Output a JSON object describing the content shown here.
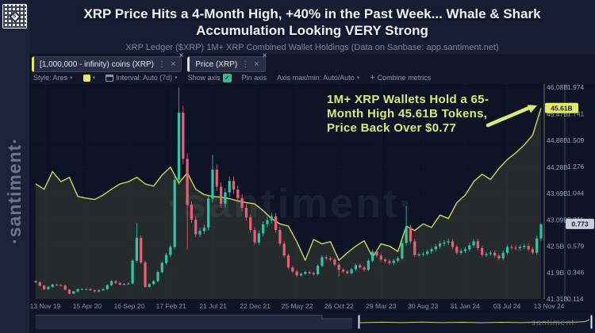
{
  "header": {
    "title_line1": "XRP Price Hits a 4-Month High, +40% in the Past Week... Whale & Shark",
    "title_line2": "Accumulation Looking VERY Strong",
    "subtitle": "XRP Ledger ($XRP) 1M+ XRP Combined Wallet Holdings (Data on Sanbase: app.santiment.net)"
  },
  "sidebar": {
    "brand": "·santiment·",
    "qr_logo_letter": "S"
  },
  "icons": {
    "chevron_down": "▾",
    "kebab": "⋮",
    "close": "×",
    "check": "✓",
    "plus": "+"
  },
  "chips": [
    {
      "label": "[1,000,000 - infinity) coins (XRP)",
      "color": "#e4ea66"
    },
    {
      "label": "Price (XRP)",
      "color": "#d6dae3"
    }
  ],
  "toolbar": {
    "style_label": "Style: Ares",
    "swatch_color": "#e4ea66",
    "interval_label": "Interval: Auto (7d)",
    "show_axis_label": "Show axis",
    "pin_axis_label": "Pin axis",
    "axis_minmax_label": "Axis max/min: Auto/Auto",
    "combine_label": "Combine metrics"
  },
  "annotation": {
    "lines": [
      "1M+ XRP Wallets Hold a 65-",
      "Month High 45.61B Tokens,",
      "Price Back Over $0.77"
    ],
    "color": "#dce878"
  },
  "chart_data": {
    "type": "mixed",
    "watermark": "·santiment·",
    "grid": true,
    "legend_position": "top",
    "x_tick_labels": [
      "13 Nov 19",
      "15 Apr 20",
      "16 Sep 20",
      "17 Feb 21",
      "21 Jul 21",
      "22 Dec 21",
      "25 May 22",
      "26 Oct 22",
      "29 Mar 23",
      "30 Aug 23",
      "31 Jan 24",
      "03 Jul 24",
      "13 Nov 24"
    ],
    "series": [
      {
        "name": "[1,000,000 - infinity) coins (XRP)",
        "type": "area-line",
        "unit": "B",
        "color": "#cdd55f",
        "fill": "rgba(204,212,94,0.12)",
        "axis": {
          "side": "right",
          "min": 41.31,
          "max": 46.08,
          "ticks": [
            "46.08B",
            "45.47B",
            "44.88B",
            "44.28B",
            "43.69B",
            "43.09B",
            "42.5B",
            "41.9B",
            "41.31B"
          ],
          "badge": "45.61B",
          "badge_value": 45.61,
          "badge_bg": "#e4ea66"
        },
        "monthly_values": [
          43.9,
          43.78,
          44.18,
          43.95,
          44.05,
          43.62,
          43.58,
          43.55,
          43.65,
          43.78,
          43.9,
          43.95,
          44.05,
          43.9,
          43.85,
          44.1,
          44.28,
          43.92,
          44.15,
          43.78,
          43.66,
          43.62,
          43.6,
          43.57,
          43.52,
          43.48,
          43.45,
          43.3,
          43.12,
          43.0,
          42.95,
          42.6,
          42.18,
          42.65,
          42.55,
          42.6,
          42.18,
          42.35,
          42.5,
          42.62,
          42.25,
          42.55,
          42.5,
          42.38,
          42.95,
          42.85,
          43.0,
          42.92,
          43.2,
          43.12,
          43.48,
          43.65,
          43.95,
          44.12,
          44.0,
          44.25,
          44.45,
          44.6,
          44.78,
          45.0,
          45.61
        ]
      },
      {
        "name": "Price (XRP)",
        "type": "candlestick",
        "color_up": "#2ec7a6",
        "color_down": "#ea5f75",
        "axis": {
          "side": "right",
          "min": 0.114,
          "max": 1.974,
          "ticks": [
            "1.974",
            "1.741",
            "1.509",
            "1.276",
            "1.044",
            "0.811",
            "0.579",
            "0.346",
            "0.114"
          ],
          "badge": "0.773",
          "badge_value": 0.773,
          "badge_bg": "#c9cfdb"
        },
        "monthly_closes": [
          0.26,
          0.2,
          0.24,
          0.23,
          0.16,
          0.2,
          0.2,
          0.18,
          0.2,
          0.27,
          0.24,
          0.25,
          0.65,
          0.22,
          0.27,
          0.43,
          0.57,
          1.75,
          0.94,
          0.68,
          0.74,
          1.25,
          0.95,
          1.15,
          1.0,
          0.83,
          0.61,
          0.77,
          0.84,
          0.6,
          0.39,
          0.32,
          0.35,
          0.33,
          0.48,
          0.46,
          0.37,
          0.34,
          0.41,
          0.37,
          0.53,
          0.46,
          0.43,
          0.47,
          0.74,
          0.5,
          0.51,
          0.55,
          0.6,
          0.62,
          0.52,
          0.55,
          0.62,
          0.5,
          0.52,
          0.47,
          0.57,
          0.56,
          0.58,
          0.52,
          0.77
        ],
        "wick_overrides": [
          {
            "m": 12,
            "high": 0.78
          },
          {
            "m": 17,
            "high": 1.97
          },
          {
            "m": 18,
            "low": 0.55
          },
          {
            "m": 21,
            "high": 1.38
          },
          {
            "m": 36,
            "low": 0.31
          },
          {
            "m": 44,
            "high": 0.93
          },
          {
            "m": 60,
            "high": 0.78
          }
        ]
      }
    ]
  },
  "navigator": {
    "watermark": "·santiment·"
  }
}
